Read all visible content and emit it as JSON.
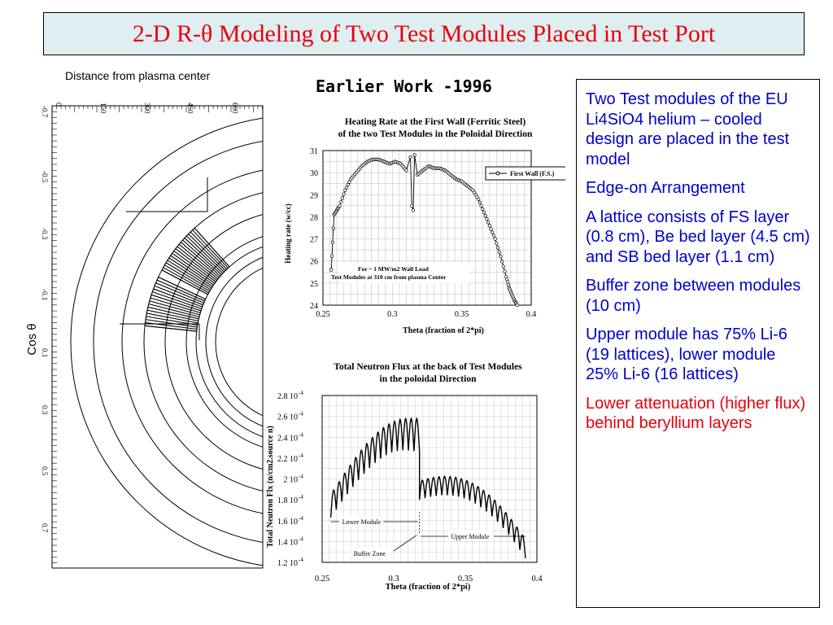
{
  "slide": {
    "title": "2-D R-θ Modeling of Two Test Modules Placed in Test Port",
    "distance_label": "Distance from plasma center",
    "earlier_work": "Earlier Work -1996",
    "cos_label": "Cos θ",
    "radial_ticks": [
      "0",
      "150",
      "300",
      "450",
      "600"
    ],
    "cos_ticks": [
      "-0.7",
      "-0.5",
      "-0.3",
      "-0.1",
      "0.1",
      "0.3",
      "0.5",
      "0.7"
    ],
    "bullets": [
      "Two Test modules of the EU Li4SiO4 helium – cooled design are placed in the test model",
      "Edge-on Arrangement",
      "A lattice consists of FS layer (0.8 cm), Be bed layer (4.5 cm) and SB bed layer (1.1 cm)",
      "Buffer zone between modules (10 cm)",
      "Upper module has 75% Li-6 (19 lattices), lower module 25% Li-6 (16 lattices)"
    ],
    "bullet_red": "Lower attenuation (higher flux) behind beryllium layers",
    "colors": {
      "title": "#e8000b",
      "title_bg": "#dfeef1",
      "bullets": "#0000cc",
      "highlight": "#e8000b"
    }
  },
  "chart_data": [
    {
      "type": "line",
      "title": "Heating Rate at  the First Wall (Ferritic Steel)",
      "subtitle": "of the two Test Modules in the Poloidal Direction",
      "xlabel": "Theta (fraction of 2*pi)",
      "ylabel": "Heating rate (w/cc)",
      "xlim": [
        0.25,
        0.4
      ],
      "ylim": [
        24,
        31
      ],
      "xticks": [
        "0.25",
        "0.3",
        "0.35",
        "0.4"
      ],
      "yticks": [
        "24",
        "25",
        "26",
        "27",
        "28",
        "29",
        "30",
        "31"
      ],
      "legend": "First Wall (F.S.)",
      "annotation": [
        "For ~ 1 MW/m2 Wall Load",
        "Test Modules at 310 cm from plasma Center"
      ],
      "series": [
        {
          "name": "First Wall (F.S.)",
          "x": [
            0.256,
            0.258,
            0.26,
            0.262,
            0.266,
            0.27,
            0.274,
            0.278,
            0.282,
            0.286,
            0.29,
            0.294,
            0.298,
            0.302,
            0.306,
            0.31,
            0.313,
            0.314,
            0.315,
            0.316,
            0.318,
            0.322,
            0.326,
            0.33,
            0.334,
            0.338,
            0.342,
            0.346,
            0.35,
            0.354,
            0.358,
            0.362,
            0.366,
            0.37,
            0.374,
            0.378,
            0.382,
            0.384,
            0.386,
            0.388,
            0.39
          ],
          "y": [
            25.6,
            28.1,
            28.3,
            28.5,
            29.2,
            29.7,
            30.0,
            30.3,
            30.5,
            30.6,
            30.6,
            30.5,
            30.4,
            30.5,
            30.4,
            30.1,
            30.7,
            28.5,
            28.3,
            30.8,
            29.9,
            30.1,
            30.3,
            30.2,
            30.2,
            30.1,
            29.9,
            29.7,
            29.6,
            29.4,
            29.2,
            28.8,
            28.2,
            27.6,
            27.0,
            26.2,
            25.3,
            24.8,
            24.5,
            24.2,
            24.0
          ]
        }
      ]
    },
    {
      "type": "line",
      "title": "Total Neutron Flux at the back of Test Modules",
      "subtitle": "in the poloidal Direction",
      "xlabel": "Theta (fraction of 2*pi)",
      "ylabel": "Total Neutron Flx (n/cm2.source n)",
      "xlim": [
        0.25,
        0.4
      ],
      "ylim": [
        0.00012,
        0.00028
      ],
      "xticks": [
        "0.25",
        "0.3",
        "0.35",
        "0.4"
      ],
      "yticks": [
        "1.2 10",
        "1.4 10",
        "1.6 10",
        "1.8 10",
        "2 10",
        "2.2 10",
        "2.4 10",
        "2.6 10",
        "2.8 10"
      ],
      "tick_exponent": "-4",
      "annotations": [
        "Lower Module",
        "Buffer Zone",
        "Upper Module"
      ],
      "lower_module": {
        "theta_start": 0.256,
        "theta_end": 0.318,
        "oscillations": 16,
        "flux_start": 0.000185,
        "flux_peak": 0.000258
      },
      "upper_module": {
        "theta_start": 0.318,
        "theta_end": 0.392,
        "oscillations": 19,
        "flux_start": 0.000198,
        "flux_end": 0.000142
      }
    }
  ]
}
